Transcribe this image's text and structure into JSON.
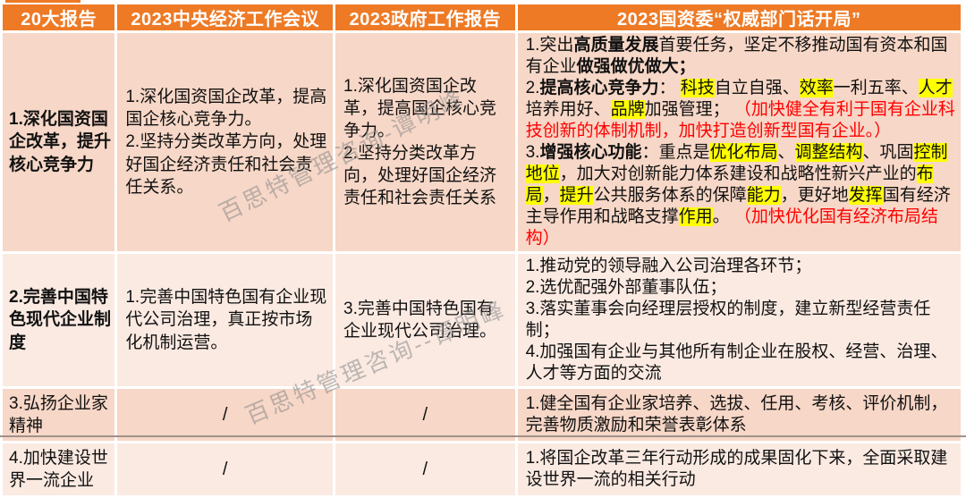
{
  "colors": {
    "header_bg": "#EE7A25",
    "row_dark_bg": "#F7D7C7",
    "row_light_bg": "#FBEAE2",
    "highlight": "#FFFF00",
    "red_text": "#FF0000"
  },
  "watermarks": {
    "wm1": "百思特管理咨询-谭明峰",
    "wm2": "百思特管理咨询--谭明峰"
  },
  "table": {
    "headers": [
      "20大报告",
      "2023中央经济工作会议",
      "2023政府工作报告",
      "2023国资委“权威部门话开局”"
    ],
    "rows": [
      {
        "topic": "1.深化国资国企改革，提升核心竞争力",
        "central": "1.深化国资国企改革，提高国企核心竞争力。\n2.坚持分类改革方向，处理好国企经济责任和社会责任关系。",
        "gov": "1.深化国资国企改革，提高国企核心竞争力。\n2.坚持分类改革方向，处理好国企经济责任和社会责任关系",
        "sasac": [
          {
            "t": "1.突出"
          },
          {
            "t": "高质量发展",
            "b": 1
          },
          {
            "t": "首要任务，坚定不移推动国有资本和国有企业"
          },
          {
            "t": "做强做优做大；",
            "b": 1
          },
          {
            "t": "\n2."
          },
          {
            "t": "提高核心竞争力",
            "b": 1
          },
          {
            "t": "： "
          },
          {
            "t": "科技",
            "h": 1
          },
          {
            "t": "自立自强、"
          },
          {
            "t": "效率",
            "h": 1
          },
          {
            "t": "一利五率、"
          },
          {
            "t": "人才",
            "h": 1
          },
          {
            "t": "培养用好、"
          },
          {
            "t": "品牌",
            "h": 1
          },
          {
            "t": "加强管理；  "
          },
          {
            "t": "（加快健全有利于国有企业科技创新的体制机制，加快打造创新型国有企业。）",
            "r": 1
          },
          {
            "t": "\n3."
          },
          {
            "t": "增强核心功能",
            "b": 1
          },
          {
            "t": "：重点是"
          },
          {
            "t": "优化布局",
            "h": 1
          },
          {
            "t": "、"
          },
          {
            "t": "调整结构",
            "h": 1
          },
          {
            "t": "、巩固"
          },
          {
            "t": "控制地位",
            "h": 1
          },
          {
            "t": "，加大对创新能力体系建设和战略性新兴产业的"
          },
          {
            "t": "布局",
            "h": 1
          },
          {
            "t": "，"
          },
          {
            "t": "提升",
            "h": 1
          },
          {
            "t": "公共服务体系的保障"
          },
          {
            "t": "能力",
            "h": 1
          },
          {
            "t": "，更好地"
          },
          {
            "t": "发挥",
            "h": 1
          },
          {
            "t": "国有经济主导作用和战略支撑"
          },
          {
            "t": "作用",
            "h": 1
          },
          {
            "t": "。  "
          },
          {
            "t": "（加快优化国有经济布局结构）",
            "r": 1
          }
        ]
      },
      {
        "topic": "2.完善中国特色现代企业制度",
        "central": "1.完善中国特色国有企业现代公司治理，真正按市场化机制运营。",
        "gov": "3.完善中国特色国有企业现代公司治理。",
        "sasac": [
          {
            "t": "1.推动党的领导融入公司治理各环节；\n2.选优配强外部董事队伍；\n3.落实董事会向经理层授权的制度，建立新型经营责任制；\n4.加强国有企业与其他所有制企业在股权、经营、治理、人才等方面的交流"
          }
        ]
      },
      {
        "topic": "3.弘扬企业家精神",
        "central": "/",
        "gov": "/",
        "sasac": [
          {
            "t": "1.健全国有企业家培养、选拔、任用、考核、评价机制，完善物质激励和荣誉表彰体系"
          }
        ]
      },
      {
        "topic": "4.加快建设世界一流企业",
        "central": "/",
        "gov": "/",
        "sasac": [
          {
            "t": "1.将国企改革三年行动形成的成果固化下来，全面采取建设世界一流的相关行动"
          }
        ]
      }
    ]
  }
}
